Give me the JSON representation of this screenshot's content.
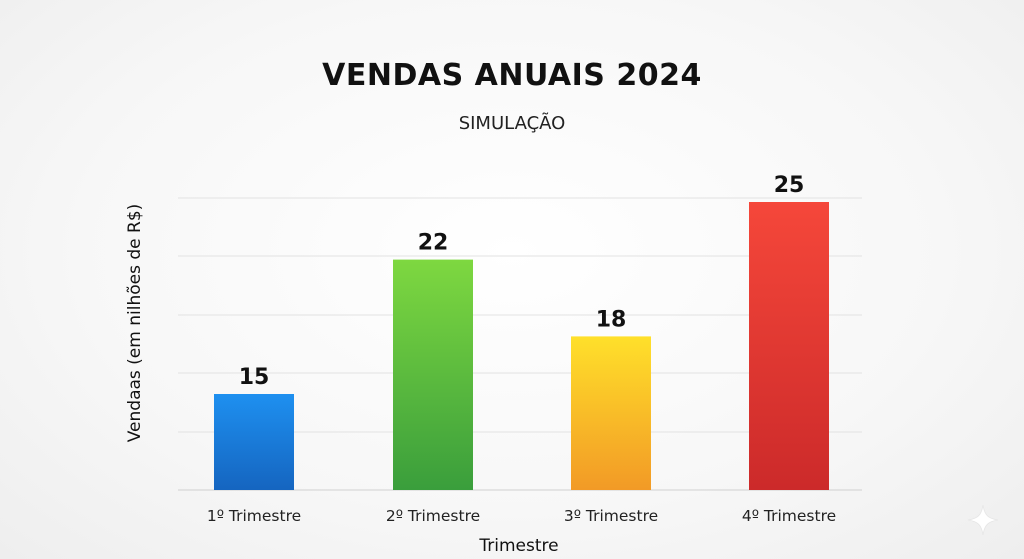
{
  "chart_data": {
    "type": "bar",
    "title": "VENDAS ANUAIS 2024",
    "subtitle": "SIMULAÇÃO",
    "xlabel": "Trimestre",
    "ylabel": "Vendaas (em nilhões de R$)",
    "categories": [
      "1º Trimestre",
      "2º Trimestre",
      "3º Trimestre",
      "4º Trimestre"
    ],
    "values": [
      15,
      22,
      18,
      25
    ],
    "bar_colors": [
      [
        "#1e90f0",
        "#1565c0"
      ],
      [
        "#7ed840",
        "#3a9e3c"
      ],
      [
        "#ffe02a",
        "#f29a26"
      ],
      [
        "#f5473a",
        "#cc2a2a"
      ]
    ],
    "grid": true,
    "legend": "none"
  },
  "watermark": {
    "icon": "sparkle-icon",
    "color": "#ffffff"
  }
}
